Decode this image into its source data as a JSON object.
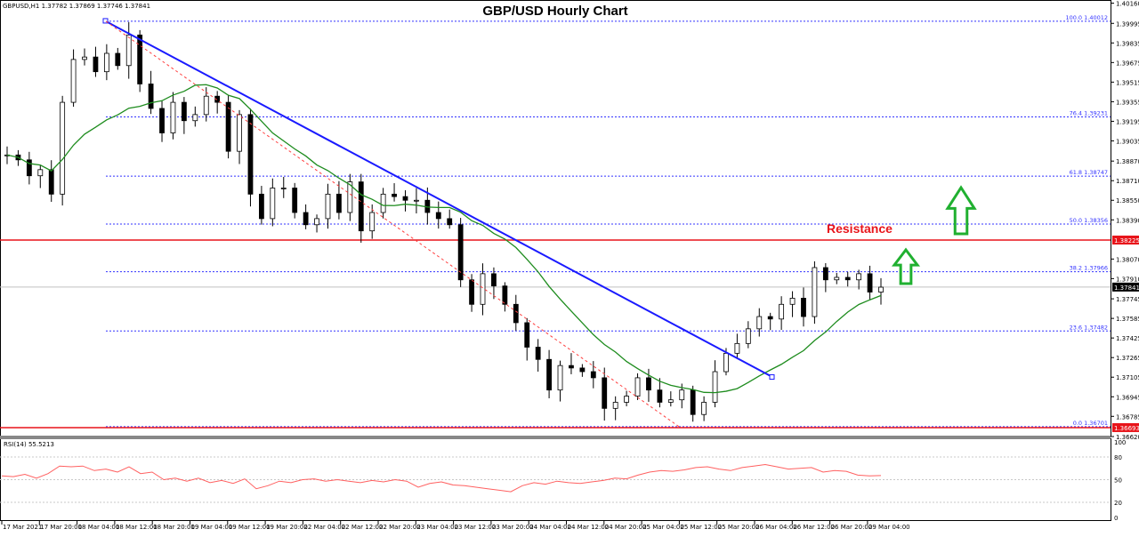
{
  "header": {
    "symbol_info": "GBPUSD,H1  1.37782 1.37869 1.37746 1.37841",
    "title": "GBP/USD Hourly Chart"
  },
  "annotations": {
    "resistance_label": "Resistance"
  },
  "rsi": {
    "label": "RSI(14) 55.5213",
    "levels": [
      "100",
      "80",
      "50",
      "20",
      "0"
    ]
  },
  "colors": {
    "bull_candle": "#ffffff",
    "bear_candle": "#000000",
    "sma": "#1e8c1e",
    "trendline": "#1a1aff",
    "fib": "#3333ff",
    "resistance": "#e8141a",
    "rsi_line": "#ff6060",
    "arrow": "#20b030"
  },
  "chart_data": {
    "type": "candlestick",
    "title": "GBP/USD Hourly Chart",
    "symbol": "GBPUSD,H1",
    "ohlc_last": {
      "open": 1.37782,
      "high": 1.37869,
      "low": 1.37746,
      "close": 1.37841
    },
    "price_axis": [
      "1.40160",
      "1.39995",
      "1.39835",
      "1.39675",
      "1.39515",
      "1.39355",
      "1.39195",
      "1.39035",
      "1.38870",
      "1.38710",
      "1.38550",
      "1.38390",
      "1.38070",
      "1.37910",
      "1.37745",
      "1.37585",
      "1.37425",
      "1.37265",
      "1.37105",
      "1.36945",
      "1.36785",
      "1.36620"
    ],
    "ylim": [
      1.3662,
      1.4016
    ],
    "time_axis": [
      "17 Mar 2021",
      "17 Mar 20:00",
      "18 Mar 04:00",
      "18 Mar 12:00",
      "18 Mar 20:00",
      "19 Mar 04:00",
      "19 Mar 12:00",
      "19 Mar 20:00",
      "22 Mar 04:00",
      "22 Mar 12:00",
      "22 Mar 20:00",
      "23 Mar 04:00",
      "23 Mar 12:00",
      "23 Mar 20:00",
      "24 Mar 04:00",
      "24 Mar 12:00",
      "24 Mar 20:00",
      "25 Mar 04:00",
      "25 Mar 12:00",
      "25 Mar 20:00",
      "26 Mar 04:00",
      "26 Mar 12:00",
      "26 Mar 20:00",
      "29 Mar 04:00"
    ],
    "current_price": "1.37841",
    "resistance_price": "1.38225",
    "support_price": "1.36693",
    "fibonacci": [
      {
        "level": "100.0",
        "price": "1.40012"
      },
      {
        "level": "76.4",
        "price": "1.39231"
      },
      {
        "level": "61.8",
        "price": "1.38747"
      },
      {
        "level": "50.0",
        "price": "1.38356"
      },
      {
        "level": "38.2",
        "price": "1.37966"
      },
      {
        "level": "23.6",
        "price": "1.37482"
      },
      {
        "level": "0.0",
        "price": "1.36701"
      }
    ],
    "trendline": {
      "from": {
        "time": "18 Mar 04:00",
        "price": 1.40012
      },
      "to": {
        "time": "26 Mar 04:00",
        "price": 1.3711
      }
    },
    "close_path": [
      1.3892,
      1.3888,
      1.3875,
      1.388,
      1.386,
      1.3935,
      1.397,
      1.3972,
      1.396,
      1.3975,
      1.3965,
      1.399,
      1.395,
      1.393,
      1.391,
      1.3935,
      1.392,
      1.3925,
      1.394,
      1.3935,
      1.3895,
      1.3925,
      1.386,
      1.384,
      1.3865,
      1.3865,
      1.3845,
      1.3835,
      1.384,
      1.386,
      1.3845,
      1.387,
      1.383,
      1.3845,
      1.386,
      1.3858,
      1.3855,
      1.3855,
      1.3845,
      1.384,
      1.3835,
      1.379,
      1.377,
      1.3795,
      1.3785,
      1.377,
      1.3755,
      1.3735,
      1.3725,
      1.37,
      1.372,
      1.3718,
      1.3715,
      1.371,
      1.3685,
      1.369,
      1.3695,
      1.371,
      1.37,
      1.369,
      1.3692,
      1.37,
      1.368,
      1.369,
      1.3715,
      1.373,
      1.3738,
      1.375,
      1.376,
      1.3758,
      1.377,
      1.3775,
      1.376,
      1.38,
      1.379,
      1.3792,
      1.379,
      1.3795,
      1.378,
      1.3784
    ],
    "rsi_values": [
      55,
      54,
      57,
      52,
      58,
      68,
      67,
      68,
      62,
      64,
      60,
      67,
      58,
      60,
      50,
      52,
      48,
      52,
      46,
      49,
      45,
      51,
      38,
      42,
      48,
      46,
      50,
      51,
      48,
      50,
      48,
      46,
      49,
      47,
      50,
      48,
      40,
      45,
      47,
      43,
      42,
      40,
      38,
      36,
      34,
      42,
      46,
      44,
      48,
      46,
      45,
      47,
      49,
      52,
      51,
      56,
      60,
      62,
      61,
      63,
      66,
      67,
      64,
      62,
      66,
      68,
      70,
      67,
      64,
      65,
      66,
      60,
      62,
      61,
      56,
      55,
      55.5
    ],
    "rsi_levels": [
      80,
      50,
      20
    ],
    "rsi_ylim": [
      0,
      100
    ]
  }
}
